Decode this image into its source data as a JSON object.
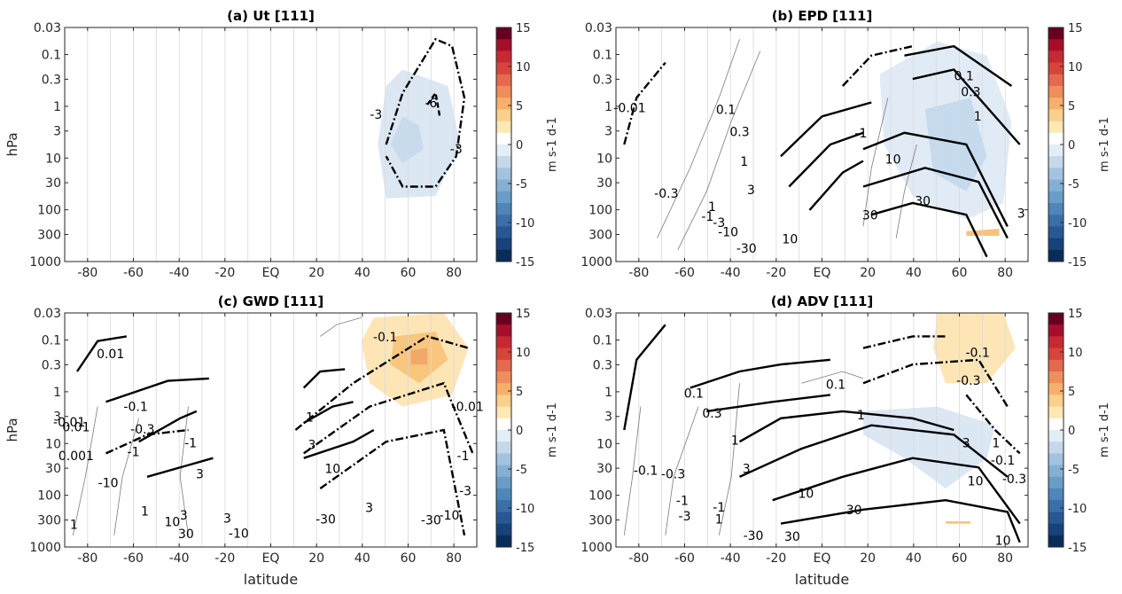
{
  "chart_data": [
    {
      "type": "contour",
      "title": "(a) Ut [111]",
      "ylabel": "hPa",
      "xlabel": "",
      "x_ticks": [
        "-80",
        "-60",
        "-40",
        "-20",
        "EQ",
        "20",
        "40",
        "60",
        "80"
      ],
      "x_values": [
        -80,
        -60,
        -40,
        -20,
        0,
        20,
        40,
        60,
        80
      ],
      "y_ticks": [
        "0.03",
        "0.1",
        "0.3",
        "1",
        "3",
        "10",
        "30",
        "100",
        "300",
        "1000"
      ],
      "y_values": [
        0.03,
        0.1,
        0.3,
        1,
        3,
        10,
        30,
        100,
        300,
        1000
      ],
      "xlim": [
        -90,
        90
      ],
      "ylim": [
        1000,
        0.03
      ],
      "y_scale": "log",
      "grid": "vertical",
      "contour_labels": [
        {
          "text": "-3",
          "lat": 46,
          "p": 1.5
        },
        {
          "text": "-6",
          "lat": 70,
          "p": 0.9
        },
        {
          "text": "-3",
          "lat": 81,
          "p": 7
        }
      ],
      "colorbar": {
        "label": "m s-1 d-1",
        "ticks": [
          "15",
          "10",
          "5",
          "0",
          "-5",
          "-10",
          "-15"
        ],
        "range": [
          -15,
          15
        ]
      }
    },
    {
      "type": "contour",
      "title": "(b) EPD [111]",
      "ylabel": "",
      "xlabel": "",
      "x_ticks": [
        "-80",
        "-60",
        "-40",
        "-20",
        "EQ",
        "20",
        "40",
        "60",
        "80"
      ],
      "x_values": [
        -80,
        -60,
        -40,
        -20,
        0,
        20,
        40,
        60,
        80
      ],
      "y_ticks": [
        "0.03",
        "0.1",
        "0.3",
        "1",
        "3",
        "10",
        "30",
        "100",
        "300",
        "1000"
      ],
      "y_values": [
        0.03,
        0.1,
        0.3,
        1,
        3,
        10,
        30,
        100,
        300,
        1000
      ],
      "xlim": [
        -90,
        90
      ],
      "ylim": [
        1000,
        0.03
      ],
      "y_scale": "log",
      "grid": "vertical",
      "contour_labels": [
        {
          "text": "-0.01",
          "lat": -84,
          "p": 1.1
        },
        {
          "text": "0.1",
          "lat": -42,
          "p": 1.2
        },
        {
          "text": "0.3",
          "lat": -36,
          "p": 3.2
        },
        {
          "text": "1",
          "lat": -34,
          "p": 12
        },
        {
          "text": "3",
          "lat": -31,
          "p": 43
        },
        {
          "text": "1",
          "lat": -48,
          "p": 90
        },
        {
          "text": "-0.3",
          "lat": -68,
          "p": 50
        },
        {
          "text": "-1",
          "lat": -50,
          "p": 140
        },
        {
          "text": "-3",
          "lat": -45,
          "p": 185
        },
        {
          "text": "-10",
          "lat": -41,
          "p": 280
        },
        {
          "text": "-30",
          "lat": -33,
          "p": 570
        },
        {
          "text": "10",
          "lat": -14,
          "p": 380
        },
        {
          "text": "0.1",
          "lat": 62,
          "p": 0.27
        },
        {
          "text": "0.3",
          "lat": 65,
          "p": 0.55
        },
        {
          "text": "1",
          "lat": 68,
          "p": 1.6
        },
        {
          "text": "-1",
          "lat": 17,
          "p": 3.4
        },
        {
          "text": "10",
          "lat": 31,
          "p": 11
        },
        {
          "text": "30",
          "lat": 44,
          "p": 70
        },
        {
          "text": "30",
          "lat": 21,
          "p": 130
        },
        {
          "text": "3",
          "lat": 87,
          "p": 120
        }
      ],
      "colorbar": {
        "label": "m s-1 d-1",
        "ticks": [
          "15",
          "10",
          "5",
          "0",
          "-5",
          "-10",
          "-15"
        ],
        "range": [
          -15,
          15
        ]
      }
    },
    {
      "type": "contour",
      "title": "(c) GWD [111]",
      "ylabel": "hPa",
      "xlabel": "latitude",
      "x_ticks": [
        "-80",
        "-60",
        "-40",
        "-20",
        "EQ",
        "20",
        "40",
        "60",
        "80"
      ],
      "x_values": [
        -80,
        -60,
        -40,
        -20,
        0,
        20,
        40,
        60,
        80
      ],
      "y_ticks": [
        "0.03",
        "0.1",
        "0.3",
        "1",
        "3",
        "10",
        "30",
        "100",
        "300",
        "1000"
      ],
      "y_values": [
        0.03,
        0.1,
        0.3,
        1,
        3,
        10,
        30,
        100,
        300,
        1000
      ],
      "xlim": [
        -90,
        90
      ],
      "ylim": [
        1000,
        0.03
      ],
      "y_scale": "log",
      "grid": "vertical",
      "contour_labels": [
        {
          "text": "0.01",
          "lat": -70,
          "p": 0.19
        },
        {
          "text": "-0.1",
          "lat": -59,
          "p": 2
        },
        {
          "text": "-0.3",
          "lat": -56,
          "p": 5.5
        },
        {
          "text": "-1",
          "lat": -60,
          "p": 15
        },
        {
          "text": "-1",
          "lat": -35,
          "p": 10
        },
        {
          "text": "3",
          "lat": -31,
          "p": 40
        },
        {
          "text": "-0.01",
          "lat": -88,
          "p": 4
        },
        {
          "text": "0.001",
          "lat": -85,
          "p": 18
        },
        {
          "text": "0.01",
          "lat": -85,
          "p": 5
        },
        {
          "text": "-10",
          "lat": -71,
          "p": 60
        },
        {
          "text": "1",
          "lat": -86,
          "p": 380
        },
        {
          "text": "1",
          "lat": -55,
          "p": 210
        },
        {
          "text": "10",
          "lat": -43,
          "p": 340
        },
        {
          "text": "3",
          "lat": -38,
          "p": 250
        },
        {
          "text": "30",
          "lat": -37,
          "p": 580
        },
        {
          "text": "3",
          "lat": -19,
          "p": 290
        },
        {
          "text": "-10",
          "lat": -14,
          "p": 560
        },
        {
          "text": "-0.1",
          "lat": 50,
          "p": 0.09
        },
        {
          "text": "-0.01",
          "lat": 86,
          "p": 2
        },
        {
          "text": "1",
          "lat": 17,
          "p": 3.2
        },
        {
          "text": "3",
          "lat": 18,
          "p": 11
        },
        {
          "text": "10",
          "lat": 27,
          "p": 32
        },
        {
          "text": "-30",
          "lat": 24,
          "p": 300
        },
        {
          "text": "3",
          "lat": 43,
          "p": 180
        },
        {
          "text": "-30",
          "lat": 70,
          "p": 310
        },
        {
          "text": "-10",
          "lat": 78,
          "p": 250
        },
        {
          "text": "-1",
          "lat": 84,
          "p": 18
        },
        {
          "text": "-3",
          "lat": 85,
          "p": 85
        }
      ],
      "colorbar": {
        "label": "m s-1 d-1",
        "ticks": [
          "15",
          "10",
          "5",
          "0",
          "-5",
          "-10",
          "-15"
        ],
        "range": [
          -15,
          15
        ]
      }
    },
    {
      "type": "contour",
      "title": "(d) ADV [111]",
      "ylabel": "",
      "xlabel": "latitude",
      "x_ticks": [
        "-80",
        "-60",
        "-40",
        "-20",
        "EQ",
        "20",
        "40",
        "60",
        "80"
      ],
      "x_values": [
        -80,
        -60,
        -40,
        -20,
        0,
        20,
        40,
        60,
        80
      ],
      "y_ticks": [
        "0.03",
        "0.1",
        "0.3",
        "1",
        "3",
        "10",
        "30",
        "100",
        "300",
        "1000"
      ],
      "y_values": [
        0.03,
        0.1,
        0.3,
        1,
        3,
        10,
        30,
        100,
        300,
        1000
      ],
      "xlim": [
        -90,
        90
      ],
      "ylim": [
        1000,
        0.03
      ],
      "y_scale": "log",
      "grid": "vertical",
      "contour_labels": [
        {
          "text": "0.1",
          "lat": -56,
          "p": 1.1
        },
        {
          "text": "0.3",
          "lat": -48,
          "p": 2.7
        },
        {
          "text": "1",
          "lat": -38,
          "p": 9
        },
        {
          "text": "3",
          "lat": -33,
          "p": 32
        },
        {
          "text": "10",
          "lat": -7,
          "p": 95
        },
        {
          "text": "30",
          "lat": 14,
          "p": 200
        },
        {
          "text": "1",
          "lat": 17,
          "p": 2.9
        },
        {
          "text": "0.1",
          "lat": 6,
          "p": 0.75
        },
        {
          "text": "-0.1",
          "lat": -77,
          "p": 34
        },
        {
          "text": "-0.3",
          "lat": -65,
          "p": 40
        },
        {
          "text": "-1",
          "lat": -61,
          "p": 130
        },
        {
          "text": "-3",
          "lat": -60,
          "p": 260
        },
        {
          "text": "-1",
          "lat": -45,
          "p": 175
        },
        {
          "text": "1",
          "lat": -45,
          "p": 300
        },
        {
          "text": "-30",
          "lat": -30,
          "p": 620
        },
        {
          "text": "30",
          "lat": -13,
          "p": 650
        },
        {
          "text": "3",
          "lat": 63,
          "p": 10
        },
        {
          "text": "10",
          "lat": 67,
          "p": 55
        },
        {
          "text": "-0.1",
          "lat": 68,
          "p": 0.18
        },
        {
          "text": "-0.3",
          "lat": 64,
          "p": 0.62
        },
        {
          "text": "1",
          "lat": 76,
          "p": 10
        },
        {
          "text": "-0.3",
          "lat": 84,
          "p": 50
        },
        {
          "text": "-0.1",
          "lat": 79,
          "p": 22
        },
        {
          "text": "10",
          "lat": 79,
          "p": 780
        }
      ],
      "colorbar": {
        "label": "m s-1 d-1",
        "ticks": [
          "15",
          "10",
          "5",
          "0",
          "-5",
          "-10",
          "-15"
        ],
        "range": [
          -15,
          15
        ]
      }
    }
  ]
}
